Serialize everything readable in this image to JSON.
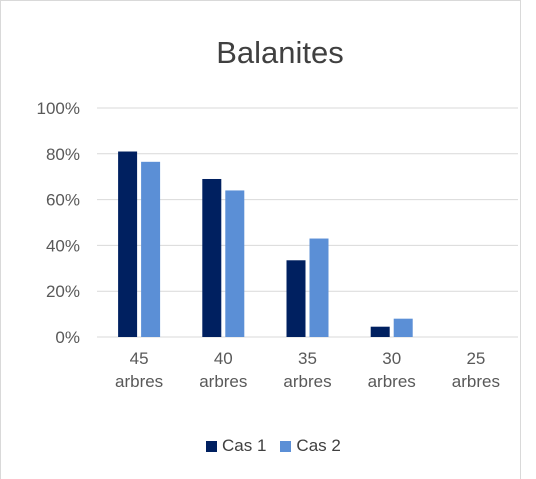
{
  "chart_data": {
    "type": "bar",
    "title": "Balanites",
    "xlabel": "",
    "ylabel": "",
    "categories": [
      "45 arbres",
      "40 arbres",
      "35 arbres",
      "30 arbres",
      "25 arbres"
    ],
    "category_lines": [
      [
        "45",
        "arbres"
      ],
      [
        "40",
        "arbres"
      ],
      [
        "35",
        "arbres"
      ],
      [
        "30",
        "arbres"
      ],
      [
        "25",
        "arbres"
      ]
    ],
    "series": [
      {
        "name": "Cas 1",
        "color": "#002060",
        "values": [
          0.81,
          0.69,
          0.335,
          0.045,
          0
        ]
      },
      {
        "name": "Cas 2",
        "color": "#5b8fd6",
        "values": [
          0.765,
          0.64,
          0.43,
          0.08,
          0
        ]
      }
    ],
    "ylim": [
      0,
      1
    ],
    "yticks": [
      0,
      0.2,
      0.4,
      0.6,
      0.8,
      1
    ],
    "ytick_labels": [
      "0%",
      "20%",
      "40%",
      "60%",
      "80%",
      "100%"
    ],
    "grid": true,
    "legend_position": "bottom"
  }
}
